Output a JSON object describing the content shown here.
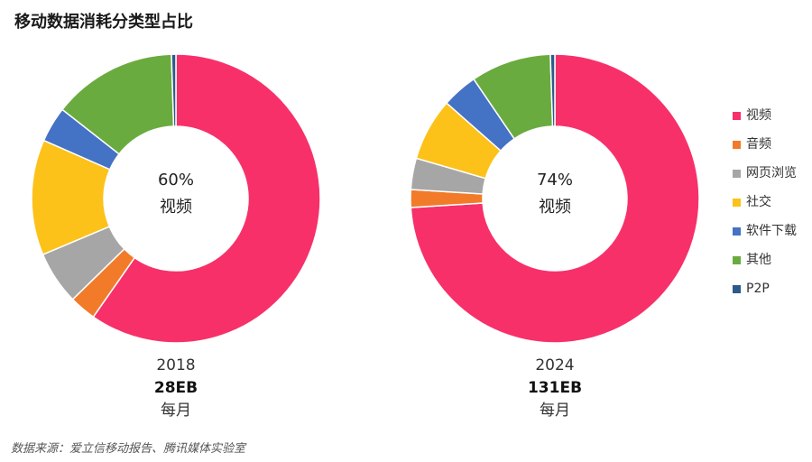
{
  "title": "移动数据消耗分类型占比",
  "source": "数据来源：爱立信移动报告、腾讯媒体实验室",
  "colors": {
    "视频": "#f7306a",
    "音频": "#f27b2a",
    "网页浏览": "#a6a6a6",
    "社交": "#fcc21a",
    "软件下载": "#4472c4",
    "其他": "#6aab3f",
    "P2P": "#2d5a8a"
  },
  "chart_data": [
    {
      "type": "pie",
      "year": "2018",
      "total": "28EB",
      "period": "每月",
      "center_pct": "60%",
      "center_label": "视频",
      "categories": [
        "视频",
        "音频",
        "网页浏览",
        "社交",
        "软件下载",
        "其他",
        "P2P"
      ],
      "values": [
        60,
        3,
        6,
        13,
        4,
        14,
        0.5
      ]
    },
    {
      "type": "pie",
      "year": "2024",
      "total": "131EB",
      "period": "每月",
      "center_pct": "74%",
      "center_label": "视频",
      "categories": [
        "视频",
        "音频",
        "网页浏览",
        "社交",
        "软件下载",
        "其他",
        "P2P"
      ],
      "values": [
        74,
        2,
        3.5,
        7,
        4,
        9,
        0.5
      ]
    }
  ],
  "legend": [
    "视频",
    "音频",
    "网页浏览",
    "社交",
    "软件下载",
    "其他",
    "P2P"
  ]
}
